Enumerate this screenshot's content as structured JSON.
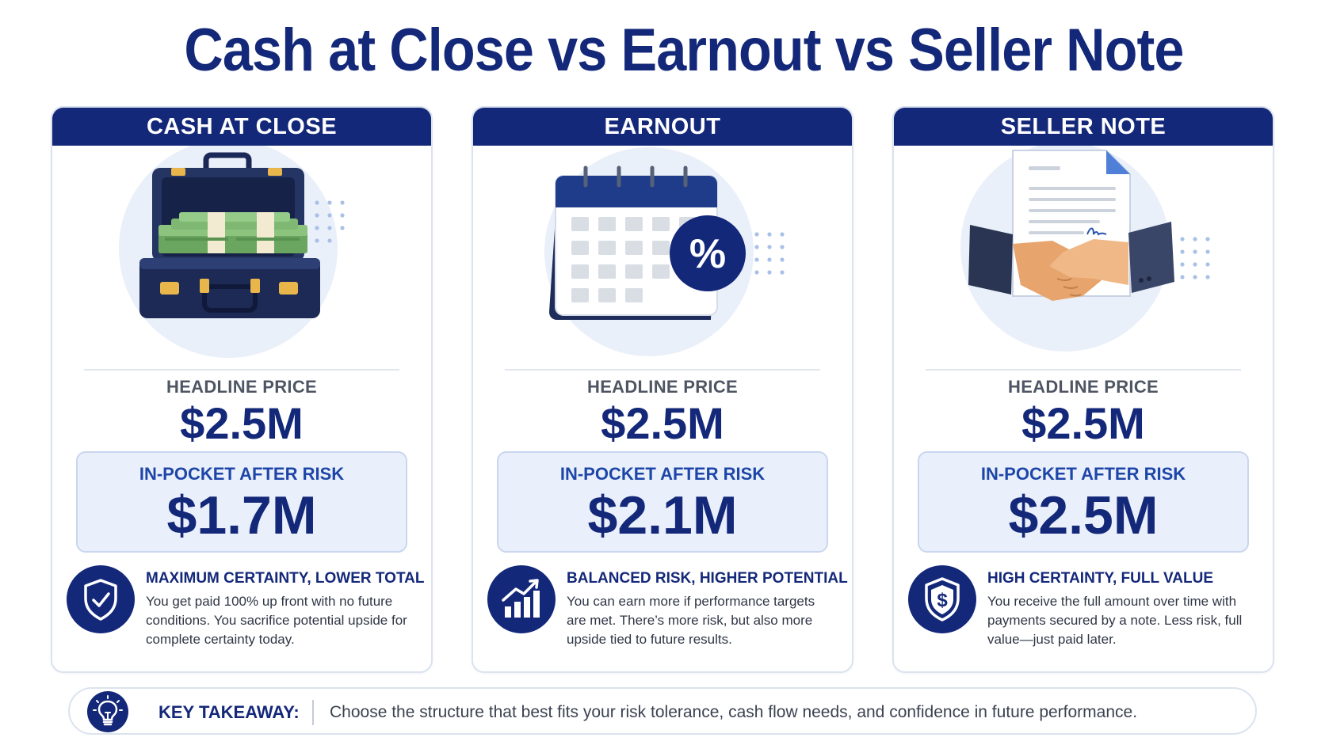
{
  "title": "Cash at Close vs Earnout vs Seller Note",
  "cards": [
    {
      "header": "CASH AT CLOSE",
      "illustration": "briefcase-of-cash",
      "headline_label": "HEADLINE PRICE",
      "headline_value": "$2.5M",
      "in_pocket_label": "IN-POCKET AFTER RISK",
      "in_pocket_value": "$1.7M",
      "note_icon": "shield-check-icon",
      "note_title": "MAXIMUM CERTAINTY, LOWER TOTAL",
      "note_body": "You get paid 100% up front with no future conditions. You sacrifice potential upside for complete certainty today."
    },
    {
      "header": "EARNOUT",
      "illustration": "calendar-with-percent",
      "headline_label": "HEADLINE PRICE",
      "headline_value": "$2.5M",
      "in_pocket_label": "IN-POCKET AFTER RISK",
      "in_pocket_value": "$2.1M",
      "note_icon": "growth-chart-icon",
      "note_title": "BALANCED RISK, HIGHER POTENTIAL",
      "note_body": "You can earn more if performance targets are met. There’s more risk, but also more upside tied to future results."
    },
    {
      "header": "SELLER NOTE",
      "illustration": "signed-document-handshake",
      "headline_label": "HEADLINE PRICE",
      "headline_value": "$2.5M",
      "in_pocket_label": "IN-POCKET AFTER RISK",
      "in_pocket_value": "$2.5M",
      "note_icon": "shield-dollar-icon",
      "note_title": "HIGH CERTAINTY, FULL VALUE",
      "note_body": "You receive the full amount over time with payments secured by a note. Less risk, full value—just paid later."
    }
  ],
  "takeaway": {
    "icon": "lightbulb-icon",
    "label": "KEY TAKEAWAY:",
    "text": "Choose the structure that best fits your risk tolerance, cash flow needs, and confidence in future performance."
  },
  "colors": {
    "navy": "#14287a",
    "accent_blue": "#1d46a8",
    "panel_fill": "#eaf0fb",
    "panel_border": "#c9d6ee",
    "money_green": "#7fb872",
    "gold": "#e8b64a"
  }
}
